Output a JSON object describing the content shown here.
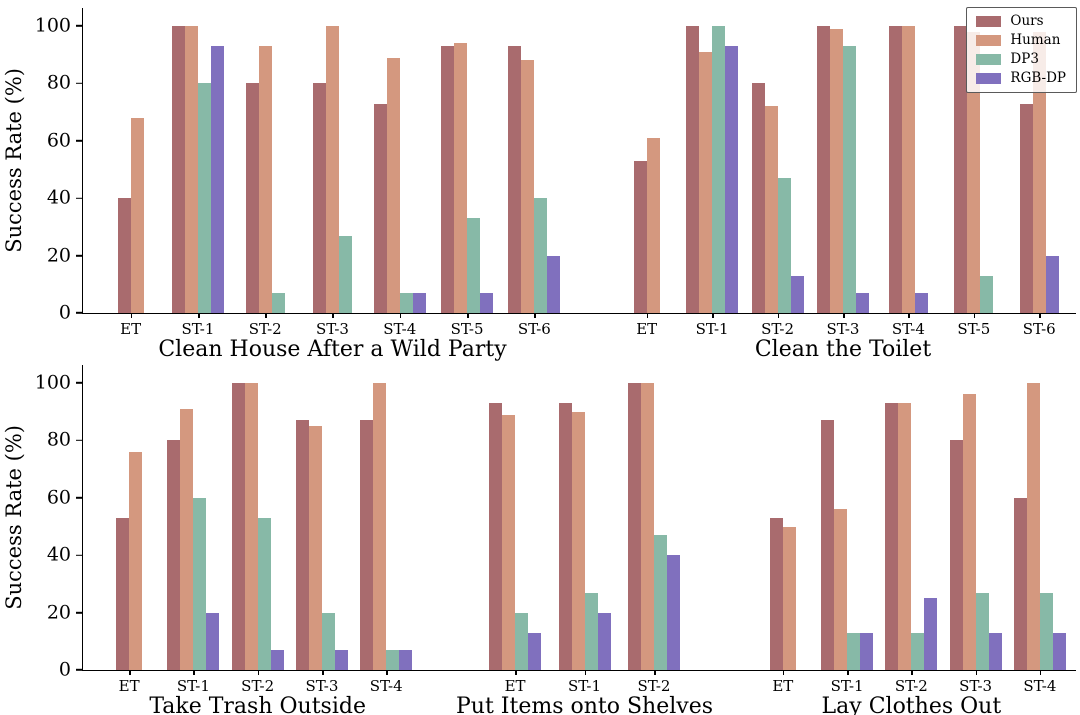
{
  "figure": {
    "background": "#ffffff",
    "axis_color": "#000000"
  },
  "chart_data": {
    "type": "bar",
    "title": "",
    "xlabel": "",
    "ylabel": "Success Rate (%)",
    "ylim": [
      0,
      100
    ],
    "yticks": [
      0,
      20,
      40,
      60,
      80,
      100
    ],
    "grid": "off",
    "legend_position": "top-right",
    "legend": [
      "Ours",
      "Human",
      "DP3",
      "RGB-DP"
    ],
    "colors": {
      "Ours": "#a96b6e",
      "Human": "#d4987f",
      "DP3": "#87b9a7",
      "RGB-DP": "#8070be"
    },
    "rows": [
      {
        "groups": [
          {
            "title": "Clean House After a Wild Party",
            "categories": [
              "ET",
              "ST-1",
              "ST-2",
              "ST-3",
              "ST-4",
              "ST-5",
              "ST-6"
            ],
            "series": [
              {
                "name": "Ours",
                "values": [
                  40,
                  100,
                  80,
                  80,
                  73,
                  93,
                  93
                ]
              },
              {
                "name": "Human",
                "values": [
                  68,
                  100,
                  93,
                  100,
                  89,
                  94,
                  88
                ]
              },
              {
                "name": "DP3",
                "values": [
                  0,
                  80,
                  7,
                  27,
                  7,
                  33,
                  40
                ]
              },
              {
                "name": "RGB-DP",
                "values": [
                  0,
                  93,
                  0,
                  0,
                  7,
                  7,
                  20
                ]
              }
            ]
          },
          {
            "title": "Clean the Toilet",
            "categories": [
              "ET",
              "ST-1",
              "ST-2",
              "ST-3",
              "ST-4",
              "ST-5",
              "ST-6"
            ],
            "series": [
              {
                "name": "Ours",
                "values": [
                  53,
                  100,
                  80,
                  100,
                  100,
                  100,
                  73
                ]
              },
              {
                "name": "Human",
                "values": [
                  61,
                  91,
                  72,
                  99,
                  100,
                  98,
                  98
                ]
              },
              {
                "name": "DP3",
                "values": [
                  0,
                  100,
                  47,
                  93,
                  0,
                  13,
                  0
                ]
              },
              {
                "name": "RGB-DP",
                "values": [
                  0,
                  93,
                  13,
                  7,
                  7,
                  0,
                  20
                ]
              }
            ]
          }
        ]
      },
      {
        "groups": [
          {
            "title": "Take Trash Outside",
            "categories": [
              "ET",
              "ST-1",
              "ST-2",
              "ST-3",
              "ST-4"
            ],
            "series": [
              {
                "name": "Ours",
                "values": [
                  53,
                  80,
                  100,
                  87,
                  87
                ]
              },
              {
                "name": "Human",
                "values": [
                  76,
                  91,
                  100,
                  85,
                  100
                ]
              },
              {
                "name": "DP3",
                "values": [
                  0,
                  60,
                  53,
                  20,
                  7
                ]
              },
              {
                "name": "RGB-DP",
                "values": [
                  0,
                  20,
                  7,
                  7,
                  7
                ]
              }
            ]
          },
          {
            "title": "Put Items onto Shelves",
            "categories": [
              "ET",
              "ST-1",
              "ST-2"
            ],
            "series": [
              {
                "name": "Ours",
                "values": [
                  93,
                  93,
                  100
                ]
              },
              {
                "name": "Human",
                "values": [
                  89,
                  90,
                  100
                ]
              },
              {
                "name": "DP3",
                "values": [
                  20,
                  27,
                  47
                ]
              },
              {
                "name": "RGB-DP",
                "values": [
                  13,
                  20,
                  40
                ]
              }
            ]
          },
          {
            "title": "Lay Clothes Out",
            "categories": [
              "ET",
              "ST-1",
              "ST-2",
              "ST-3",
              "ST-4"
            ],
            "series": [
              {
                "name": "Ours",
                "values": [
                  53,
                  87,
                  93,
                  80,
                  60
                ]
              },
              {
                "name": "Human",
                "values": [
                  50,
                  56,
                  93,
                  96,
                  100
                ]
              },
              {
                "name": "DP3",
                "values": [
                  0,
                  13,
                  13,
                  27,
                  27
                ]
              },
              {
                "name": "RGB-DP",
                "values": [
                  0,
                  13,
                  25,
                  13,
                  13
                ]
              }
            ]
          }
        ]
      }
    ]
  }
}
